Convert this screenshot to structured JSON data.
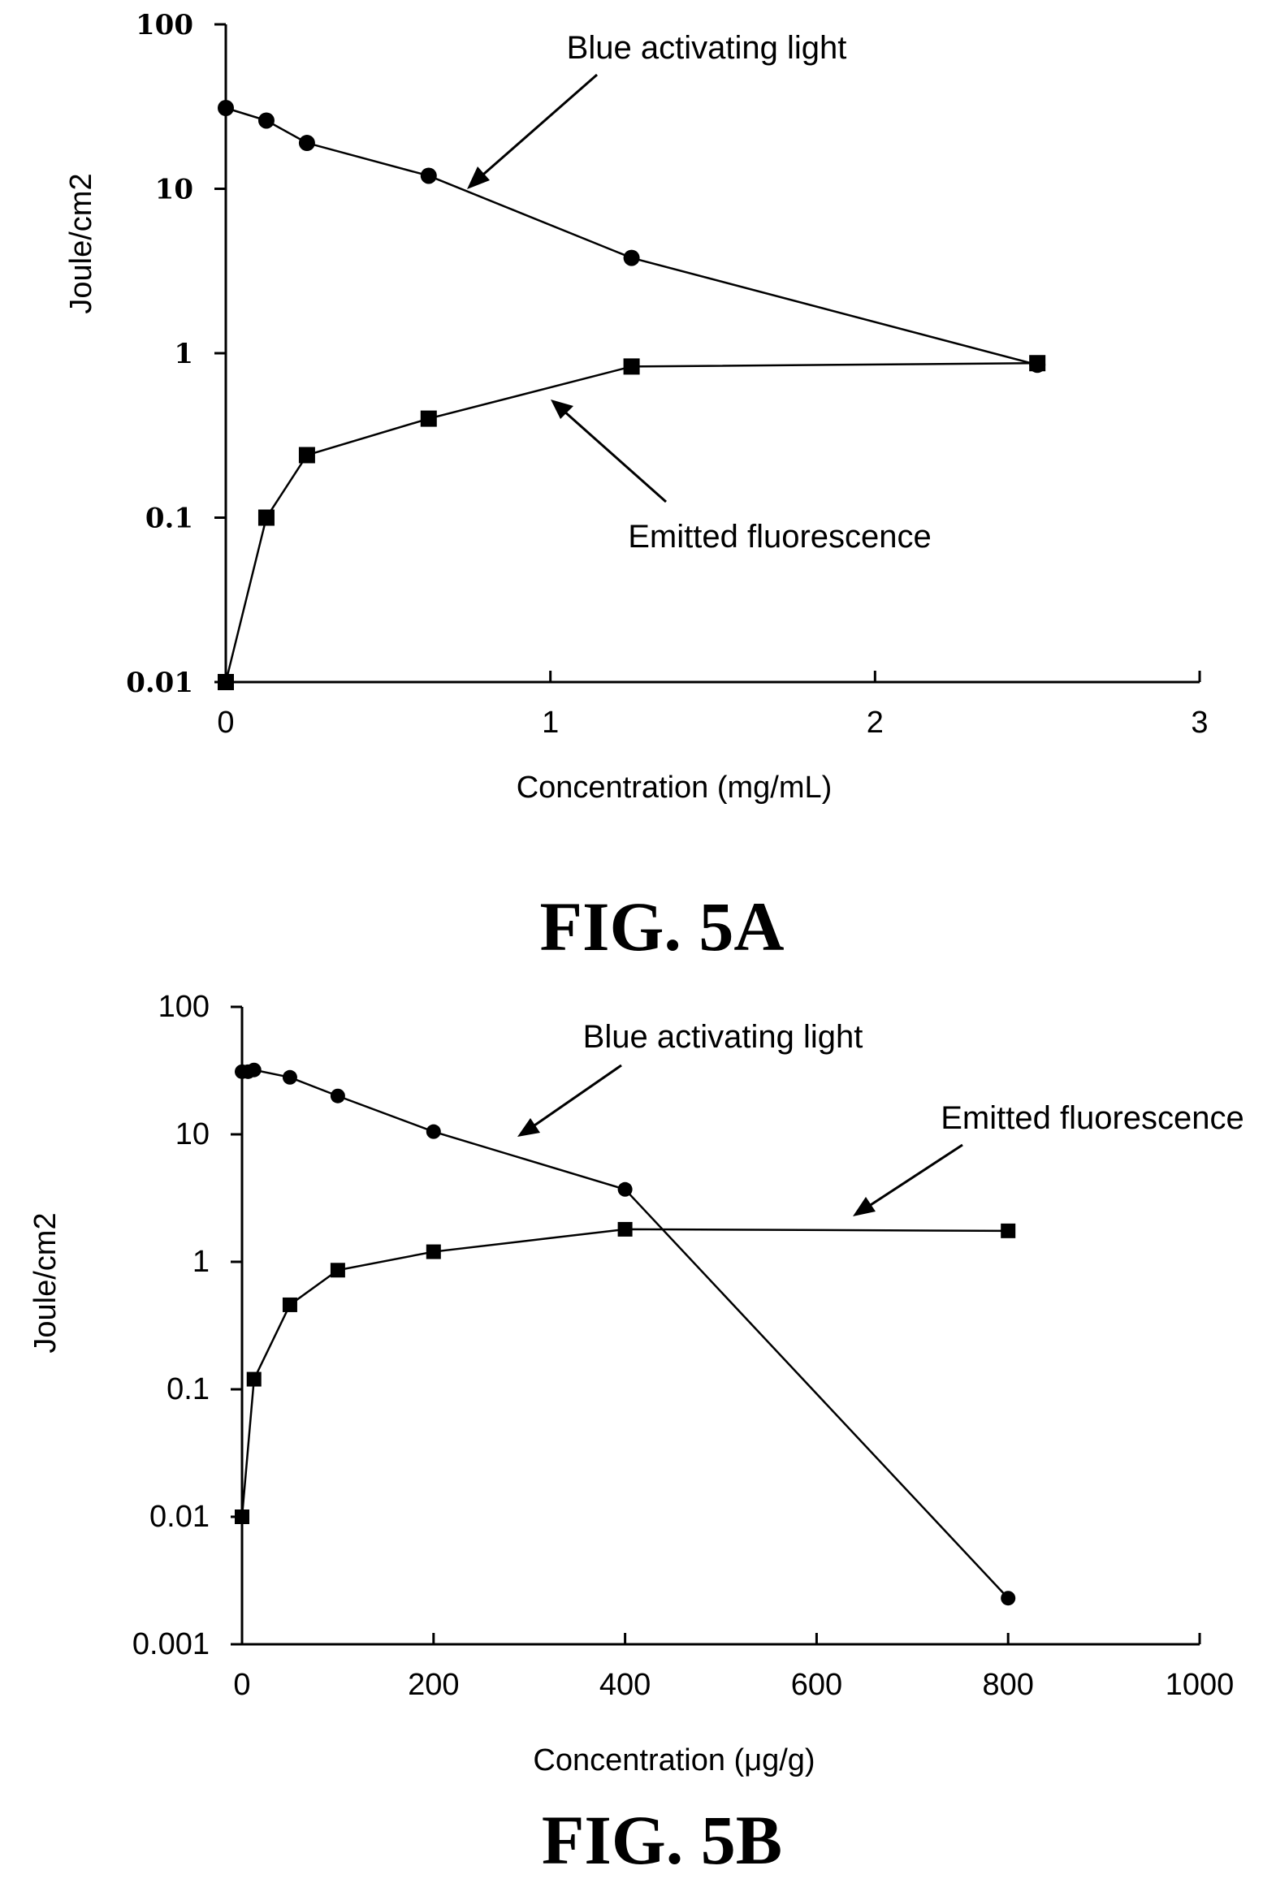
{
  "figures": [
    {
      "caption": "FIG. 5A",
      "chart_data": {
        "type": "line",
        "title": "",
        "xlabel": "Concentration  (mg/mL)",
        "ylabel": "Joule/cm2",
        "yscale": "log",
        "xlim": [
          0,
          3
        ],
        "ylim": [
          0.01,
          100
        ],
        "x_ticks": [
          0,
          1,
          2,
          3
        ],
        "x_tick_labels": [
          "0",
          "1",
          "2",
          "3"
        ],
        "y_ticks": [
          0.01,
          0.1,
          1,
          10,
          100
        ],
        "y_tick_labels": [
          "0.01",
          "0.1",
          "1",
          "10",
          "100"
        ],
        "grid": false,
        "series": [
          {
            "name": "Blue activating light",
            "marker": "circle",
            "x": [
              0,
              0.125,
              0.25,
              0.625,
              1.25,
              2.5
            ],
            "y": [
              31,
              26,
              19,
              12,
              3.8,
              0.85
            ]
          },
          {
            "name": "Emitted fluorescence",
            "marker": "square",
            "x": [
              0,
              0.125,
              0.25,
              0.625,
              1.25,
              2.5
            ],
            "y": [
              0.01,
              0.1,
              0.24,
              0.4,
              0.83,
              0.87
            ]
          }
        ]
      }
    },
    {
      "caption": "FIG. 5B",
      "chart_data": {
        "type": "line",
        "title": "",
        "xlabel": "Concentration  (μg/g)",
        "ylabel": "Joule/cm2",
        "yscale": "log",
        "xlim": [
          0,
          1000
        ],
        "ylim": [
          0.001,
          100
        ],
        "x_ticks": [
          0,
          200,
          400,
          600,
          800,
          1000
        ],
        "x_tick_labels": [
          "0",
          "200",
          "400",
          "600",
          "800",
          "1000"
        ],
        "y_ticks": [
          0.001,
          0.01,
          0.1,
          1,
          10,
          100
        ],
        "y_tick_labels": [
          "0.001",
          "0.01",
          "0.1",
          "1",
          "10",
          "100"
        ],
        "grid": false,
        "series": [
          {
            "name": "Blue activating light",
            "marker": "circle",
            "x": [
              0,
              6.25,
              12.5,
              50,
              100,
              200,
              400,
              800
            ],
            "y": [
              31,
              31,
              32,
              28,
              20,
              10.5,
              3.7,
              0.0023
            ]
          },
          {
            "name": "Emitted fluorescence",
            "marker": "square",
            "x": [
              0,
              12.5,
              50,
              100,
              200,
              400,
              800
            ],
            "y": [
              0.01,
              0.12,
              0.46,
              0.86,
              1.2,
              1.8,
              1.75
            ]
          }
        ]
      }
    }
  ]
}
